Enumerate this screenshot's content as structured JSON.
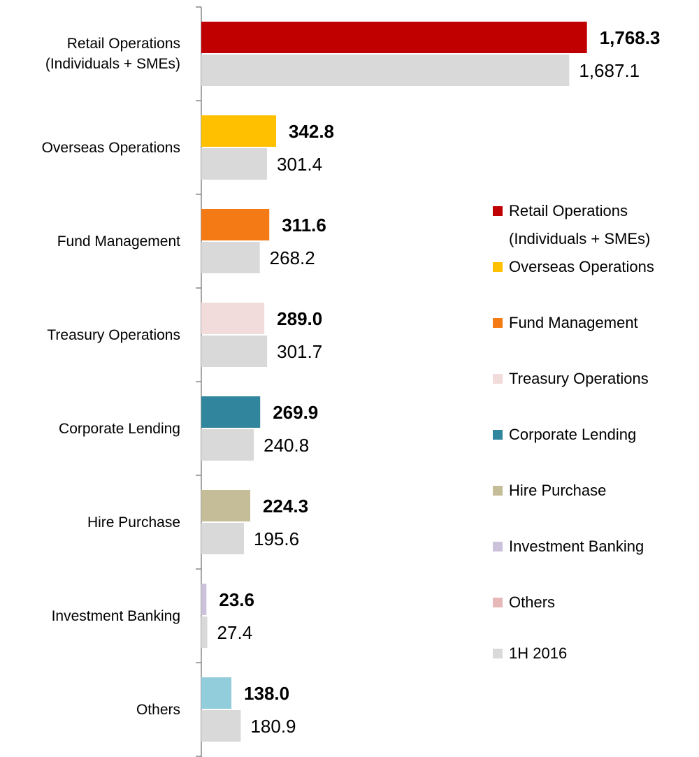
{
  "chart_data": {
    "type": "bar",
    "orientation": "horizontal",
    "categories": [
      "Retail Operations (Individuals + SMEs)",
      "Overseas Operations",
      "Fund Management",
      "Treasury Operations",
      "Corporate Lending",
      "Hire Purchase",
      "Investment Banking",
      "Others"
    ],
    "series": [
      {
        "colors": [
          "#c00000",
          "#ffc000",
          "#f47a16",
          "#f2dcdb",
          "#31859c",
          "#c4bd97",
          "#ccc1da",
          "#92cddc"
        ],
        "values": [
          1768.3,
          342.8,
          311.6,
          289.0,
          269.9,
          224.3,
          23.6,
          138.0
        ],
        "value_labels": [
          "1,768.3",
          "342.8",
          "311.6",
          "289.0",
          "269.9",
          "224.3",
          "23.6",
          "138.0"
        ]
      },
      {
        "name": "1H 2016",
        "color": "#d9d9d9",
        "values": [
          1687.1,
          301.4,
          268.2,
          301.7,
          240.8,
          195.6,
          27.4,
          180.9
        ],
        "value_labels": [
          "1,687.1",
          "301.4",
          "268.2",
          "301.7",
          "240.8",
          "195.6",
          "27.4",
          "180.9"
        ]
      }
    ],
    "legend_colors": [
      "#c00000",
      "#ffc000",
      "#f47a16",
      "#f2dcdb",
      "#31859c",
      "#c4bd97",
      "#ccc1da",
      "#e6b9b8"
    ],
    "xlim": [
      0,
      2000
    ],
    "legend": "right"
  }
}
